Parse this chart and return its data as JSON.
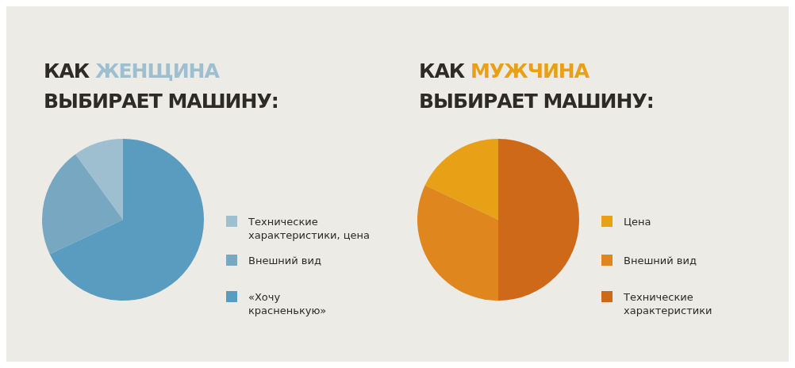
{
  "chart_data": [
    {
      "type": "pie",
      "title": "КАК ЖЕНЩИНА ВЫБИРАЕТ МАШИНУ:",
      "categories": [
        "Технические характеристики, цена",
        "Внешний вид",
        "«Хочу красненькую»"
      ],
      "values": [
        10,
        22,
        68
      ],
      "colors": [
        "#9dbfd0",
        "#78a7c2",
        "#5a9cbf"
      ],
      "legend": "right"
    },
    {
      "type": "pie",
      "title": "КАК МУЖЧИНА ВЫБИРАЕТ МАШИНУ:",
      "categories": [
        "Цена",
        "Внешний вид",
        "Технические характеристики"
      ],
      "values": [
        18,
        32,
        50
      ],
      "colors": [
        "#e8a117",
        "#e0861f",
        "#cf691a"
      ],
      "legend": "right"
    }
  ]
}
